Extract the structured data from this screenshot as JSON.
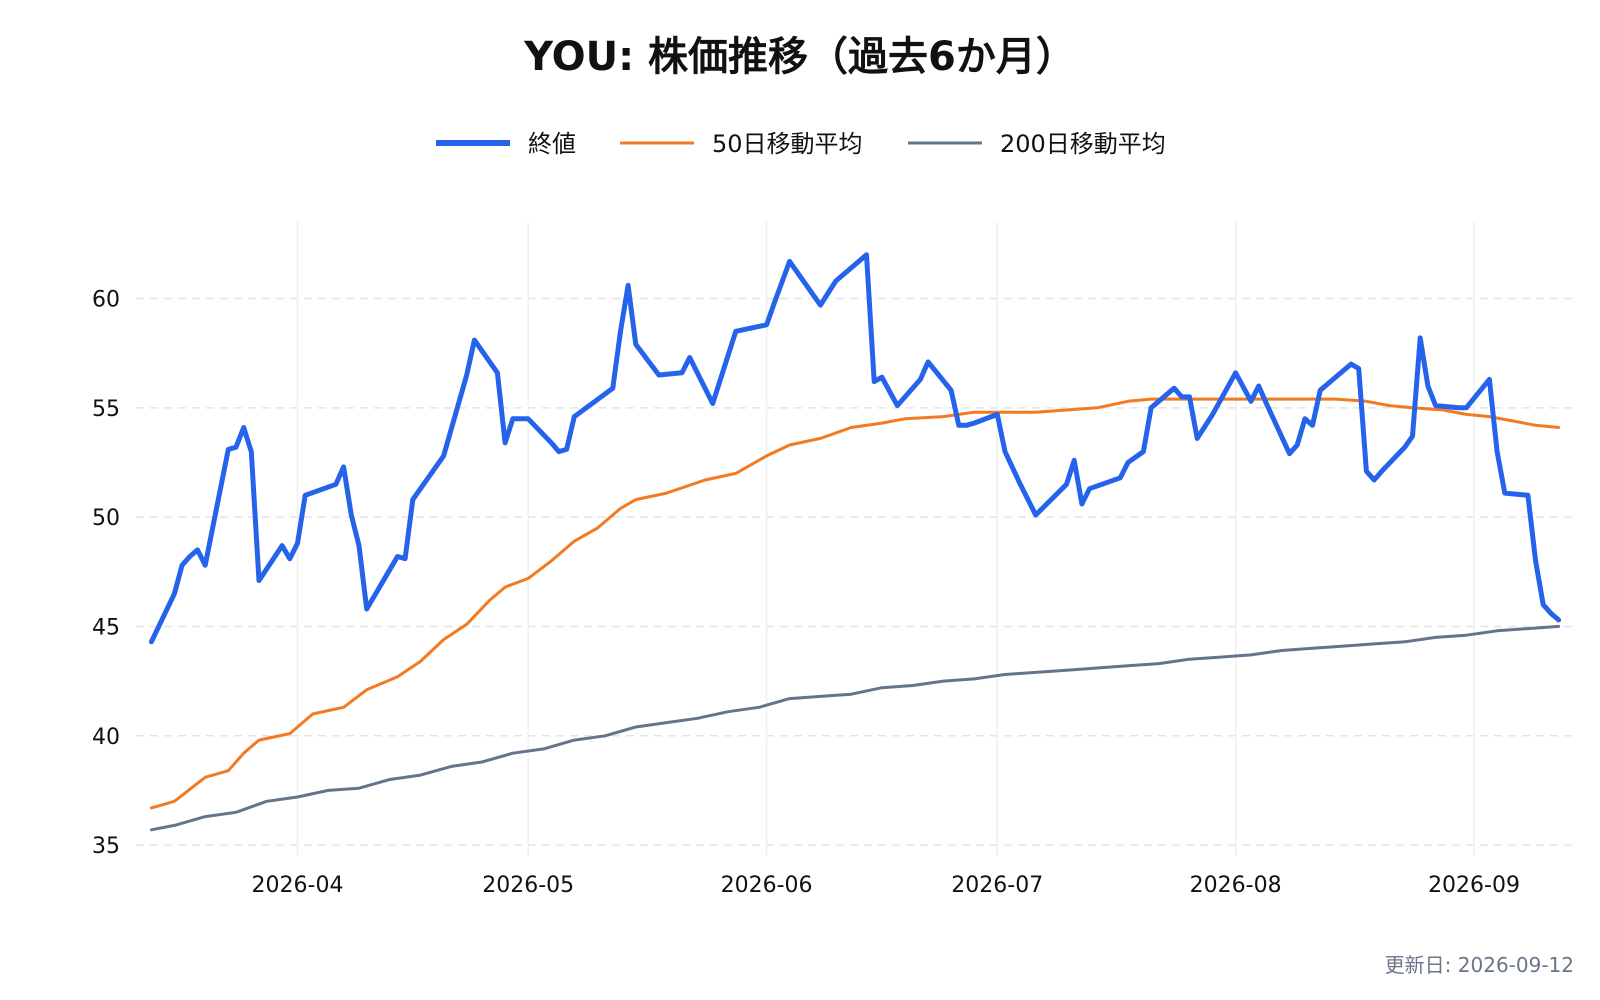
{
  "title": "YOU: 株価推移（過去6か月）",
  "updated": "更新日: 2026-09-12",
  "chart_data": {
    "type": "line",
    "title": "YOU: 株価推移（過去6か月）",
    "xlabel": "",
    "ylabel": "",
    "x_range": [
      "2026-03-11",
      "2026-09-14"
    ],
    "ylim": [
      34.5,
      63.5
    ],
    "y_ticks": [
      35,
      40,
      45,
      50,
      55,
      60
    ],
    "x_ticks": [
      {
        "date": "2026-04-01",
        "label": "2026-04"
      },
      {
        "date": "2026-05-01",
        "label": "2026-05"
      },
      {
        "date": "2026-06-01",
        "label": "2026-06"
      },
      {
        "date": "2026-07-01",
        "label": "2026-07"
      },
      {
        "date": "2026-08-01",
        "label": "2026-08"
      },
      {
        "date": "2026-09-01",
        "label": "2026-09"
      }
    ],
    "grid": {
      "horizontal": true,
      "vertical": true
    },
    "legend_position": "top-center",
    "series": [
      {
        "name": "終値",
        "color": "#2563eb",
        "points": [
          [
            "2026-03-13",
            44.3
          ],
          [
            "2026-03-16",
            46.5
          ],
          [
            "2026-03-17",
            47.8
          ],
          [
            "2026-03-18",
            48.2
          ],
          [
            "2026-03-19",
            48.5
          ],
          [
            "2026-03-20",
            47.8
          ],
          [
            "2026-03-23",
            53.1
          ],
          [
            "2026-03-24",
            53.2
          ],
          [
            "2026-03-25",
            54.1
          ],
          [
            "2026-03-26",
            53.0
          ],
          [
            "2026-03-27",
            47.1
          ],
          [
            "2026-03-30",
            48.7
          ],
          [
            "2026-03-31",
            48.1
          ],
          [
            "2026-04-01",
            48.8
          ],
          [
            "2026-04-02",
            51.0
          ],
          [
            "2026-04-06",
            51.5
          ],
          [
            "2026-04-07",
            52.3
          ],
          [
            "2026-04-08",
            50.1
          ],
          [
            "2026-04-09",
            48.7
          ],
          [
            "2026-04-10",
            45.8
          ],
          [
            "2026-04-14",
            48.2
          ],
          [
            "2026-04-15",
            48.1
          ],
          [
            "2026-04-16",
            50.8
          ],
          [
            "2026-04-20",
            52.8
          ],
          [
            "2026-04-23",
            56.5
          ],
          [
            "2026-04-24",
            58.1
          ],
          [
            "2026-04-27",
            56.6
          ],
          [
            "2026-04-28",
            53.4
          ],
          [
            "2026-04-29",
            54.5
          ],
          [
            "2026-05-01",
            54.5
          ],
          [
            "2026-05-04",
            53.4
          ],
          [
            "2026-05-05",
            53.0
          ],
          [
            "2026-05-06",
            53.1
          ],
          [
            "2026-05-07",
            54.6
          ],
          [
            "2026-05-12",
            55.9
          ],
          [
            "2026-05-13",
            58.5
          ],
          [
            "2026-05-14",
            60.6
          ],
          [
            "2026-05-15",
            57.9
          ],
          [
            "2026-05-18",
            56.5
          ],
          [
            "2026-05-21",
            56.6
          ],
          [
            "2026-05-22",
            57.3
          ],
          [
            "2026-05-25",
            55.2
          ],
          [
            "2026-05-28",
            58.5
          ],
          [
            "2026-06-01",
            58.8
          ],
          [
            "2026-06-02",
            59.8
          ],
          [
            "2026-06-04",
            61.7
          ],
          [
            "2026-06-08",
            59.7
          ],
          [
            "2026-06-10",
            60.8
          ],
          [
            "2026-06-14",
            62.0
          ],
          [
            "2026-06-15",
            56.2
          ],
          [
            "2026-06-16",
            56.4
          ],
          [
            "2026-06-18",
            55.1
          ],
          [
            "2026-06-21",
            56.3
          ],
          [
            "2026-06-22",
            57.1
          ],
          [
            "2026-06-25",
            55.8
          ],
          [
            "2026-06-26",
            54.2
          ],
          [
            "2026-06-27",
            54.2
          ],
          [
            "2026-06-28",
            54.3
          ],
          [
            "2026-07-01",
            54.7
          ],
          [
            "2026-07-02",
            53.0
          ],
          [
            "2026-07-04",
            51.5
          ],
          [
            "2026-07-05",
            50.8
          ],
          [
            "2026-07-06",
            50.1
          ],
          [
            "2026-07-10",
            51.5
          ],
          [
            "2026-07-11",
            52.6
          ],
          [
            "2026-07-12",
            50.6
          ],
          [
            "2026-07-13",
            51.3
          ],
          [
            "2026-07-17",
            51.8
          ],
          [
            "2026-07-18",
            52.5
          ],
          [
            "2026-07-20",
            53.0
          ],
          [
            "2026-07-21",
            55.0
          ],
          [
            "2026-07-24",
            55.9
          ],
          [
            "2026-07-25",
            55.5
          ],
          [
            "2026-07-26",
            55.5
          ],
          [
            "2026-07-27",
            53.6
          ],
          [
            "2026-07-29",
            54.7
          ],
          [
            "2026-08-01",
            56.6
          ],
          [
            "2026-08-03",
            55.3
          ],
          [
            "2026-08-04",
            56.0
          ],
          [
            "2026-08-05",
            55.2
          ],
          [
            "2026-08-08",
            52.9
          ],
          [
            "2026-08-09",
            53.3
          ],
          [
            "2026-08-10",
            54.5
          ],
          [
            "2026-08-11",
            54.2
          ],
          [
            "2026-08-12",
            55.8
          ],
          [
            "2026-08-16",
            57.0
          ],
          [
            "2026-08-17",
            56.8
          ],
          [
            "2026-08-18",
            52.1
          ],
          [
            "2026-08-19",
            51.7
          ],
          [
            "2026-08-20",
            52.1
          ],
          [
            "2026-08-23",
            53.2
          ],
          [
            "2026-08-24",
            53.7
          ],
          [
            "2026-08-25",
            58.2
          ],
          [
            "2026-08-26",
            56.0
          ],
          [
            "2026-08-27",
            55.1
          ],
          [
            "2026-08-30",
            55.0
          ],
          [
            "2026-08-31",
            55.0
          ],
          [
            "2026-09-03",
            56.3
          ],
          [
            "2026-09-04",
            53.0
          ],
          [
            "2026-09-05",
            51.1
          ],
          [
            "2026-09-08",
            51.0
          ],
          [
            "2026-09-09",
            48.0
          ],
          [
            "2026-09-10",
            46.0
          ],
          [
            "2026-09-11",
            45.6
          ],
          [
            "2026-09-12",
            45.3
          ]
        ]
      },
      {
        "name": "50日移動平均",
        "color": "#f47a21",
        "points": [
          [
            "2026-03-13",
            36.7
          ],
          [
            "2026-03-16",
            37.0
          ],
          [
            "2026-03-20",
            38.1
          ],
          [
            "2026-03-23",
            38.4
          ],
          [
            "2026-03-25",
            39.2
          ],
          [
            "2026-03-27",
            39.8
          ],
          [
            "2026-03-31",
            40.1
          ],
          [
            "2026-04-03",
            41.0
          ],
          [
            "2026-04-07",
            41.3
          ],
          [
            "2026-04-10",
            42.1
          ],
          [
            "2026-04-14",
            42.7
          ],
          [
            "2026-04-17",
            43.4
          ],
          [
            "2026-04-20",
            44.4
          ],
          [
            "2026-04-23",
            45.1
          ],
          [
            "2026-04-26",
            46.2
          ],
          [
            "2026-04-28",
            46.8
          ],
          [
            "2026-05-01",
            47.2
          ],
          [
            "2026-05-04",
            48.0
          ],
          [
            "2026-05-07",
            48.9
          ],
          [
            "2026-05-10",
            49.5
          ],
          [
            "2026-05-13",
            50.4
          ],
          [
            "2026-05-15",
            50.8
          ],
          [
            "2026-05-19",
            51.1
          ],
          [
            "2026-05-24",
            51.7
          ],
          [
            "2026-05-28",
            52.0
          ],
          [
            "2026-06-01",
            52.8
          ],
          [
            "2026-06-04",
            53.3
          ],
          [
            "2026-06-08",
            53.6
          ],
          [
            "2026-06-12",
            54.1
          ],
          [
            "2026-06-16",
            54.3
          ],
          [
            "2026-06-19",
            54.5
          ],
          [
            "2026-06-24",
            54.6
          ],
          [
            "2026-06-28",
            54.8
          ],
          [
            "2026-07-02",
            54.8
          ],
          [
            "2026-07-06",
            54.8
          ],
          [
            "2026-07-10",
            54.9
          ],
          [
            "2026-07-14",
            55.0
          ],
          [
            "2026-07-18",
            55.3
          ],
          [
            "2026-07-21",
            55.4
          ],
          [
            "2026-07-25",
            55.4
          ],
          [
            "2026-07-29",
            55.4
          ],
          [
            "2026-08-02",
            55.4
          ],
          [
            "2026-08-06",
            55.4
          ],
          [
            "2026-08-10",
            55.4
          ],
          [
            "2026-08-14",
            55.4
          ],
          [
            "2026-08-18",
            55.3
          ],
          [
            "2026-08-21",
            55.1
          ],
          [
            "2026-08-24",
            55.0
          ],
          [
            "2026-08-28",
            54.9
          ],
          [
            "2026-08-31",
            54.7
          ],
          [
            "2026-09-03",
            54.6
          ],
          [
            "2026-09-06",
            54.4
          ],
          [
            "2026-09-09",
            54.2
          ],
          [
            "2026-09-12",
            54.1
          ]
        ]
      },
      {
        "name": "200日移動平均",
        "color": "#64748b",
        "points": [
          [
            "2026-03-13",
            35.7
          ],
          [
            "2026-03-16",
            35.9
          ],
          [
            "2026-03-20",
            36.3
          ],
          [
            "2026-03-24",
            36.5
          ],
          [
            "2026-03-28",
            37.0
          ],
          [
            "2026-04-01",
            37.2
          ],
          [
            "2026-04-05",
            37.5
          ],
          [
            "2026-04-09",
            37.6
          ],
          [
            "2026-04-13",
            38.0
          ],
          [
            "2026-04-17",
            38.2
          ],
          [
            "2026-04-21",
            38.6
          ],
          [
            "2026-04-25",
            38.8
          ],
          [
            "2026-04-29",
            39.2
          ],
          [
            "2026-05-03",
            39.4
          ],
          [
            "2026-05-07",
            39.8
          ],
          [
            "2026-05-11",
            40.0
          ],
          [
            "2026-05-15",
            40.4
          ],
          [
            "2026-05-19",
            40.6
          ],
          [
            "2026-05-23",
            40.8
          ],
          [
            "2026-05-27",
            41.1
          ],
          [
            "2026-05-31",
            41.3
          ],
          [
            "2026-06-04",
            41.7
          ],
          [
            "2026-06-08",
            41.8
          ],
          [
            "2026-06-12",
            41.9
          ],
          [
            "2026-06-16",
            42.2
          ],
          [
            "2026-06-20",
            42.3
          ],
          [
            "2026-06-24",
            42.5
          ],
          [
            "2026-06-28",
            42.6
          ],
          [
            "2026-07-02",
            42.8
          ],
          [
            "2026-07-06",
            42.9
          ],
          [
            "2026-07-10",
            43.0
          ],
          [
            "2026-07-14",
            43.1
          ],
          [
            "2026-07-18",
            43.2
          ],
          [
            "2026-07-22",
            43.3
          ],
          [
            "2026-07-26",
            43.5
          ],
          [
            "2026-07-30",
            43.6
          ],
          [
            "2026-08-03",
            43.7
          ],
          [
            "2026-08-07",
            43.9
          ],
          [
            "2026-08-11",
            44.0
          ],
          [
            "2026-08-15",
            44.1
          ],
          [
            "2026-08-19",
            44.2
          ],
          [
            "2026-08-23",
            44.3
          ],
          [
            "2026-08-27",
            44.5
          ],
          [
            "2026-08-31",
            44.6
          ],
          [
            "2026-09-04",
            44.8
          ],
          [
            "2026-09-08",
            44.9
          ],
          [
            "2026-09-12",
            45.0
          ]
        ]
      }
    ]
  }
}
